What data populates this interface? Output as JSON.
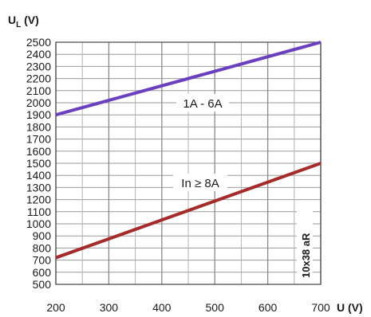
{
  "chart_data": {
    "type": "line",
    "ylabel": "U",
    "ylabel_sub": "L",
    "ylabel_unit": " (V)",
    "xlabel": "U (V)",
    "side_label": "10x38 aR",
    "x_ticks": [
      200,
      300,
      400,
      500,
      600,
      700
    ],
    "y_ticks": [
      500,
      600,
      700,
      800,
      900,
      1000,
      1100,
      1200,
      1300,
      1400,
      1500,
      1600,
      1700,
      1800,
      1900,
      2000,
      2100,
      2200,
      2300,
      2400,
      2500
    ],
    "xlim": [
      200,
      700
    ],
    "ylim": [
      500,
      2500
    ],
    "grid": true,
    "series": [
      {
        "name": "1A - 6A",
        "color": "#6a3fc0",
        "x": [
          200,
          700
        ],
        "y": [
          1900,
          2500
        ]
      },
      {
        "name": "In ≥ 8A",
        "color": "#a72a2a",
        "x": [
          200,
          700
        ],
        "y": [
          720,
          1500
        ]
      }
    ]
  }
}
